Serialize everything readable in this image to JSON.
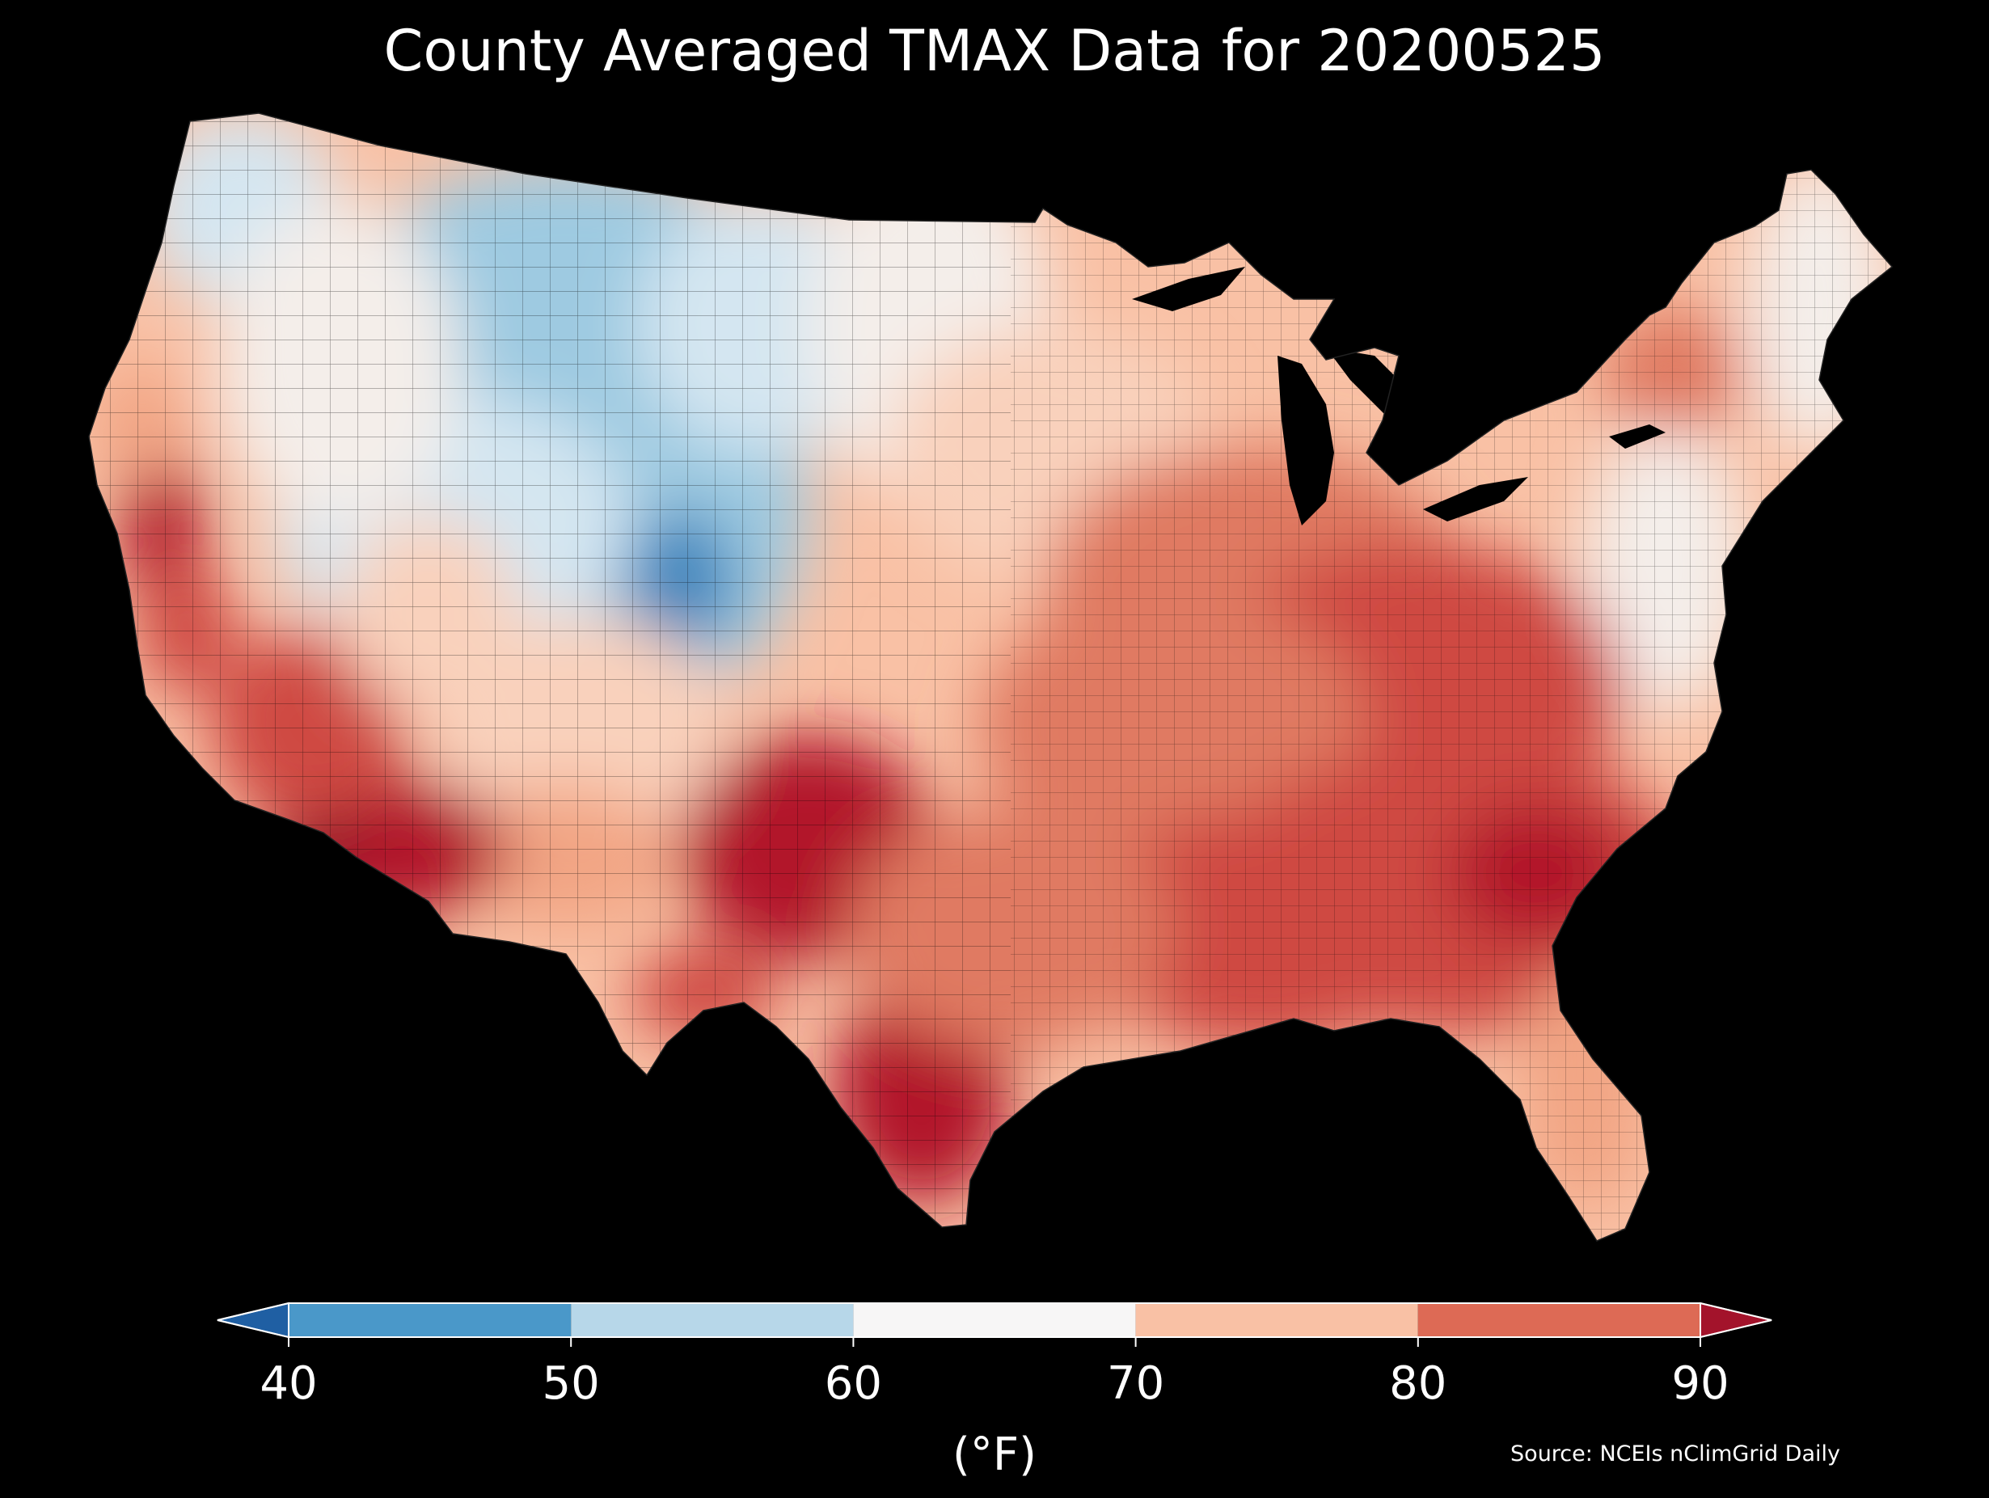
{
  "title": "County Averaged TMAX Data for 20200525",
  "source": "Source: NCEIs nClimGrid Daily",
  "colorbar": {
    "label": "(°F)",
    "ticks": [
      "40",
      "50",
      "60",
      "70",
      "80",
      "90"
    ],
    "extend": "both",
    "bins": [
      {
        "range": [
          40,
          50
        ],
        "color": "#4a98c9"
      },
      {
        "range": [
          50,
          60
        ],
        "color": "#b7d7e9"
      },
      {
        "range": [
          60,
          70
        ],
        "color": "#f7f6f6"
      },
      {
        "range": [
          70,
          80
        ],
        "color": "#f9c1a5"
      },
      {
        "range": [
          80,
          90
        ],
        "color": "#dd6a55"
      }
    ],
    "under_color": "#1f5fa3",
    "over_color": "#a3132b"
  },
  "map": {
    "region": "Contiguous United States",
    "units": "°F",
    "palette": {
      "deep_blue": "#3d85bd",
      "mid_blue": "#9ecae1",
      "light_blue": "#d4e6f1",
      "near_white": "#f4eeea",
      "light_salmon": "#f9d1bc",
      "salmon": "#f2a584",
      "orange_red": "#e07a62",
      "red": "#cf4a42",
      "dark_red": "#b2182b",
      "maroon": "#7a0622"
    }
  }
}
